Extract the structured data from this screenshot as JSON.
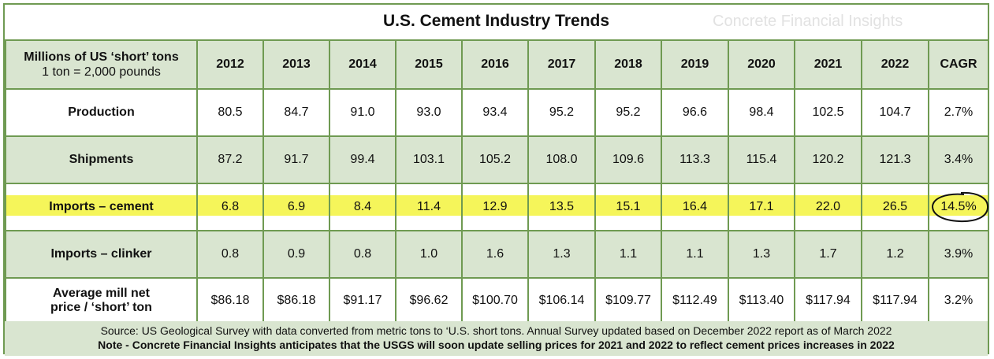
{
  "title": "U.S. Cement Industry Trends",
  "watermark": "Concrete Financial Insights",
  "header": {
    "label_line1": "Millions of US ‘short’ tons",
    "label_line2": "1 ton = 2,000 pounds",
    "years": [
      "2012",
      "2013",
      "2014",
      "2015",
      "2016",
      "2017",
      "2018",
      "2019",
      "2020",
      "2021",
      "2022"
    ],
    "cagr": "CAGR"
  },
  "rows": [
    {
      "label": "Production",
      "values": [
        "80.5",
        "84.7",
        "91.0",
        "93.0",
        "93.4",
        "95.2",
        "95.2",
        "96.6",
        "98.4",
        "102.5",
        "104.7"
      ],
      "cagr": "2.7%"
    },
    {
      "label": "Shipments",
      "values": [
        "87.2",
        "91.7",
        "99.4",
        "103.1",
        "105.2",
        "108.0",
        "109.6",
        "113.3",
        "115.4",
        "120.2",
        "121.3"
      ],
      "cagr": "3.4%"
    },
    {
      "label": "Imports – cement",
      "values": [
        "6.8",
        "6.9",
        "8.4",
        "11.4",
        "12.9",
        "13.5",
        "15.1",
        "16.4",
        "17.1",
        "22.0",
        "26.5"
      ],
      "cagr": "14.5%"
    },
    {
      "label": "Imports – clinker",
      "values": [
        "0.8",
        "0.9",
        "0.8",
        "1.0",
        "1.6",
        "1.3",
        "1.1",
        "1.1",
        "1.3",
        "1.7",
        "1.2"
      ],
      "cagr": "3.9%"
    },
    {
      "label_line1": "Average mill net",
      "label_line2": "price / ‘short’ ton",
      "values": [
        "$86.18",
        "$86.18",
        "$91.17",
        "$96.62",
        "$100.70",
        "$106.14",
        "$109.77",
        "$112.49",
        "$113.40",
        "$117.94",
        "$117.94"
      ],
      "cagr": "3.2%"
    }
  ],
  "footer": {
    "source": "Source: US Geological Survey with data converted from metric tons to ‘U.S. short tons.   Annual Survey updated based on December 2022 report as of March 2022",
    "note": "Note - Concrete Financial Insights anticipates that the USGS will soon update selling prices for 2021 and 2022 to reflect cement prices increases in 2022"
  },
  "colors": {
    "border": "#6f9a52",
    "shade": "#d9e5d0",
    "highlight": "#f5f55a"
  }
}
